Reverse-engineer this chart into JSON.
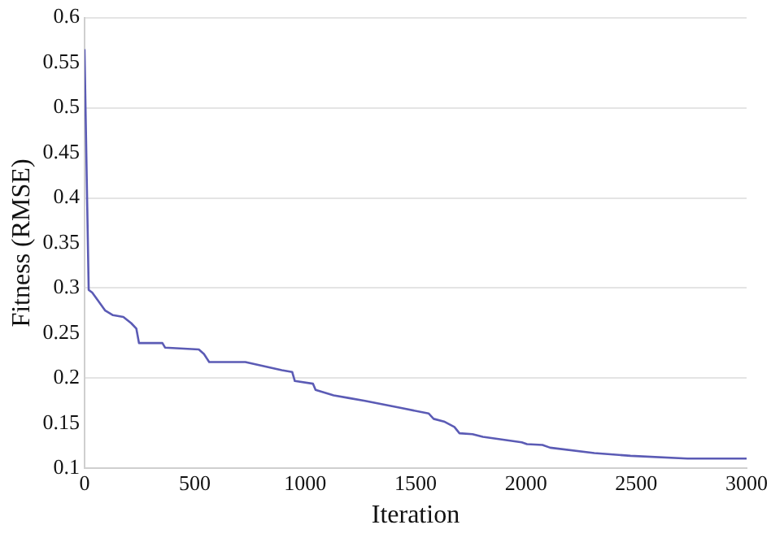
{
  "chart_data": {
    "type": "line",
    "xlabel": "Iteration",
    "ylabel": "Fitness (RMSE)",
    "x": [
      0,
      19,
      35,
      59,
      94,
      129,
      176,
      212,
      235,
      247,
      353,
      365,
      518,
      541,
      565,
      729,
      894,
      941,
      953,
      1035,
      1047,
      1129,
      1200,
      1271,
      1435,
      1559,
      1582,
      1629,
      1676,
      1699,
      1758,
      1805,
      1981,
      2005,
      2075,
      2110,
      2310,
      2474,
      2732,
      3000
    ],
    "series": [
      {
        "color": "#5b5bb5",
        "values": [
          0.565,
          0.298,
          0.295,
          0.287,
          0.275,
          0.27,
          0.268,
          0.261,
          0.255,
          0.239,
          0.239,
          0.234,
          0.232,
          0.227,
          0.218,
          0.218,
          0.209,
          0.207,
          0.197,
          0.194,
          0.187,
          0.181,
          0.178,
          0.175,
          0.167,
          0.161,
          0.155,
          0.152,
          0.146,
          0.139,
          0.138,
          0.135,
          0.129,
          0.127,
          0.126,
          0.123,
          0.117,
          0.114,
          0.111,
          0.111
        ]
      }
    ],
    "xlim": [
      0,
      3000
    ],
    "xticks": [
      0,
      500,
      1000,
      1500,
      2000,
      2500,
      3000
    ],
    "ylim": [
      0.1,
      0.6
    ],
    "yticks": [
      0.1,
      0.15,
      0.2,
      0.25,
      0.3,
      0.35,
      0.4,
      0.45,
      0.5,
      0.55,
      0.6
    ],
    "grid": "y",
    "legend": false,
    "marker": "none",
    "line_style": "solid"
  }
}
